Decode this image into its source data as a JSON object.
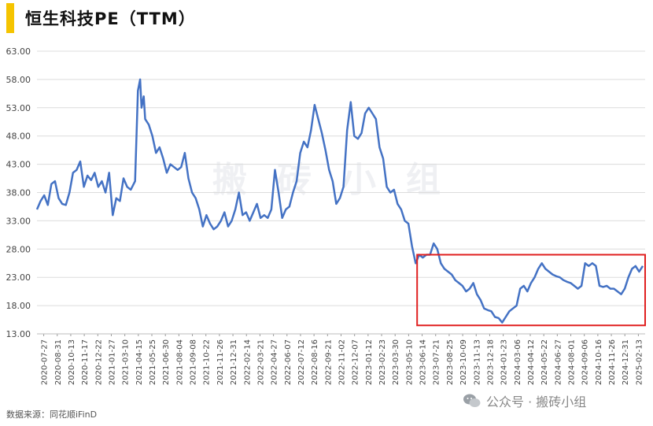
{
  "title": "恒生科技PE（TTM）",
  "source": "数据来源：同花顺iFinD",
  "wechat_label": "公众号 · 搬砖小组",
  "watermark": "搬砖小组",
  "chart_data": {
    "type": "line",
    "title": "恒生科技PE（TTM）",
    "xlabel": "",
    "ylabel": "",
    "ylim": [
      13,
      63
    ],
    "y_ticks": [
      "63.00",
      "58.00",
      "53.00",
      "48.00",
      "43.00",
      "38.00",
      "33.00",
      "28.00",
      "23.00",
      "18.00",
      "13.00"
    ],
    "x_ticks": [
      "2020-07-27",
      "2020-08-31",
      "2020-10-13",
      "2020-11-17",
      "2020-12-22",
      "2021-01-27",
      "2021-03-10",
      "2021-04-15",
      "2021-05-25",
      "2021-06-30",
      "2021-08-04",
      "2021-09-08",
      "2021-10-22",
      "2021-11-26",
      "2021-12-31",
      "2022-02-14",
      "2022-03-21",
      "2022-04-27",
      "2022-06-07",
      "2022-07-12",
      "2022-08-16",
      "2022-09-21",
      "2022-11-02",
      "2022-12-07",
      "2023-01-12",
      "2023-02-23",
      "2023-03-30",
      "2023-05-10",
      "2023-06-14",
      "2023-07-21",
      "2023-08-25",
      "2023-10-09",
      "2023-11-13",
      "2023-12-18",
      "2024-01-23",
      "2024-03-06",
      "2024-04-12",
      "2024-05-22",
      "2024-06-27",
      "2024-08-01",
      "2024-09-06",
      "2024-10-16",
      "2024-11-26",
      "2024-12-31",
      "2025-02-13"
    ],
    "grid": true,
    "legend": "none",
    "highlight": {
      "x_start": "2023-06-01",
      "x_end": "2025-03-05",
      "y_start": 14.5,
      "y_end": 27,
      "color": "#e02020"
    },
    "series": [
      {
        "color": "#4472c4",
        "values": [
          [
            0,
            35
          ],
          [
            0.5,
            36.5
          ],
          [
            1,
            37.5
          ],
          [
            1.5,
            35.8
          ],
          [
            2,
            39.5
          ],
          [
            2.5,
            40
          ],
          [
            3,
            37
          ],
          [
            3.5,
            36
          ],
          [
            4,
            35.8
          ],
          [
            4.5,
            38
          ],
          [
            5,
            41.5
          ],
          [
            5.5,
            42
          ],
          [
            6,
            43.5
          ],
          [
            6.5,
            39
          ],
          [
            7,
            41
          ],
          [
            7.5,
            40.2
          ],
          [
            8,
            41.5
          ],
          [
            8.5,
            39
          ],
          [
            9,
            40
          ],
          [
            9.5,
            38
          ],
          [
            10,
            41.5
          ],
          [
            10.5,
            34
          ],
          [
            11,
            37
          ],
          [
            11.5,
            36.5
          ],
          [
            12,
            40.5
          ],
          [
            12.5,
            39
          ],
          [
            13,
            38.5
          ],
          [
            13.6,
            40
          ],
          [
            14,
            56
          ],
          [
            14.3,
            58
          ],
          [
            14.5,
            53
          ],
          [
            14.8,
            55
          ],
          [
            15,
            51
          ],
          [
            15.5,
            50
          ],
          [
            16,
            48
          ],
          [
            16.5,
            45
          ],
          [
            17,
            46
          ],
          [
            17.5,
            44
          ],
          [
            18,
            41.5
          ],
          [
            18.5,
            43
          ],
          [
            19,
            42.5
          ],
          [
            19.5,
            42
          ],
          [
            20,
            42.5
          ],
          [
            20.5,
            45
          ],
          [
            21,
            40.5
          ],
          [
            21.5,
            38
          ],
          [
            22,
            37
          ],
          [
            22.5,
            35
          ],
          [
            23,
            32
          ],
          [
            23.5,
            34
          ],
          [
            24,
            32.5
          ],
          [
            24.5,
            31.5
          ],
          [
            25,
            32
          ],
          [
            25.5,
            33
          ],
          [
            26,
            34.5
          ],
          [
            26.5,
            32
          ],
          [
            27,
            33
          ],
          [
            27.5,
            35
          ],
          [
            28,
            38
          ],
          [
            28.5,
            34
          ],
          [
            29,
            34.5
          ],
          [
            29.5,
            33
          ],
          [
            30,
            34.5
          ],
          [
            30.5,
            36
          ],
          [
            31,
            33.5
          ],
          [
            31.5,
            34
          ],
          [
            32,
            33.5
          ],
          [
            32.5,
            35
          ],
          [
            33,
            42
          ],
          [
            33.5,
            38
          ],
          [
            34,
            33.5
          ],
          [
            34.5,
            35
          ],
          [
            35,
            35.5
          ],
          [
            35.5,
            38
          ],
          [
            36,
            40
          ],
          [
            36.5,
            45
          ],
          [
            37,
            47
          ],
          [
            37.5,
            46
          ],
          [
            38,
            49
          ],
          [
            38.5,
            53.5
          ],
          [
            39,
            51
          ],
          [
            39.5,
            48.5
          ],
          [
            40,
            45.5
          ],
          [
            40.5,
            42
          ],
          [
            41,
            40
          ],
          [
            41.5,
            36
          ],
          [
            42,
            37
          ],
          [
            42.5,
            39
          ],
          [
            43,
            49
          ],
          [
            43.5,
            54
          ],
          [
            44,
            48
          ],
          [
            44.5,
            47.5
          ],
          [
            45,
            48.5
          ],
          [
            45.5,
            52
          ],
          [
            46,
            53
          ],
          [
            46.5,
            52
          ],
          [
            47,
            51
          ],
          [
            47.5,
            46
          ],
          [
            48,
            44
          ],
          [
            48.5,
            39
          ],
          [
            49,
            38
          ],
          [
            49.5,
            38.5
          ],
          [
            50,
            36
          ],
          [
            50.5,
            35
          ],
          [
            51,
            33
          ],
          [
            51.5,
            32.5
          ],
          [
            52,
            28.5
          ],
          [
            52.5,
            25.5
          ],
          [
            53,
            27
          ],
          [
            53.5,
            26.5
          ],
          [
            54,
            27
          ],
          [
            54.5,
            27
          ],
          [
            55,
            29
          ],
          [
            55.5,
            28
          ],
          [
            56,
            25.5
          ],
          [
            56.5,
            24.5
          ],
          [
            57,
            24
          ],
          [
            57.5,
            23.5
          ],
          [
            58,
            22.5
          ],
          [
            58.5,
            22
          ],
          [
            59,
            21.5
          ],
          [
            59.5,
            20.5
          ],
          [
            60,
            21
          ],
          [
            60.5,
            22
          ],
          [
            61,
            20
          ],
          [
            61.5,
            19
          ],
          [
            62,
            17.5
          ],
          [
            62.5,
            17.2
          ],
          [
            63,
            17
          ],
          [
            63.5,
            16
          ],
          [
            64,
            15.8
          ],
          [
            64.5,
            15
          ],
          [
            65,
            16
          ],
          [
            65.5,
            17
          ],
          [
            66,
            17.5
          ],
          [
            66.5,
            18
          ],
          [
            67,
            21
          ],
          [
            67.5,
            21.5
          ],
          [
            68,
            20.5
          ],
          [
            68.5,
            22
          ],
          [
            69,
            23
          ],
          [
            69.5,
            24.5
          ],
          [
            70,
            25.5
          ],
          [
            70.5,
            24.5
          ],
          [
            71,
            24
          ],
          [
            71.5,
            23.5
          ],
          [
            72,
            23.2
          ],
          [
            72.5,
            23
          ],
          [
            73,
            22.5
          ],
          [
            73.5,
            22.2
          ],
          [
            74,
            22
          ],
          [
            74.5,
            21.5
          ],
          [
            75,
            21
          ],
          [
            75.5,
            21.5
          ],
          [
            76,
            25.5
          ],
          [
            76.5,
            25
          ],
          [
            77,
            25.5
          ],
          [
            77.5,
            25
          ],
          [
            78,
            21.5
          ],
          [
            78.5,
            21.3
          ],
          [
            79,
            21.5
          ],
          [
            79.5,
            21
          ],
          [
            80,
            21
          ],
          [
            80.5,
            20.5
          ],
          [
            81,
            20
          ],
          [
            81.5,
            21
          ],
          [
            82,
            23
          ],
          [
            82.5,
            24.5
          ],
          [
            83,
            25
          ],
          [
            83.5,
            24
          ],
          [
            84,
            25
          ]
        ]
      }
    ]
  }
}
